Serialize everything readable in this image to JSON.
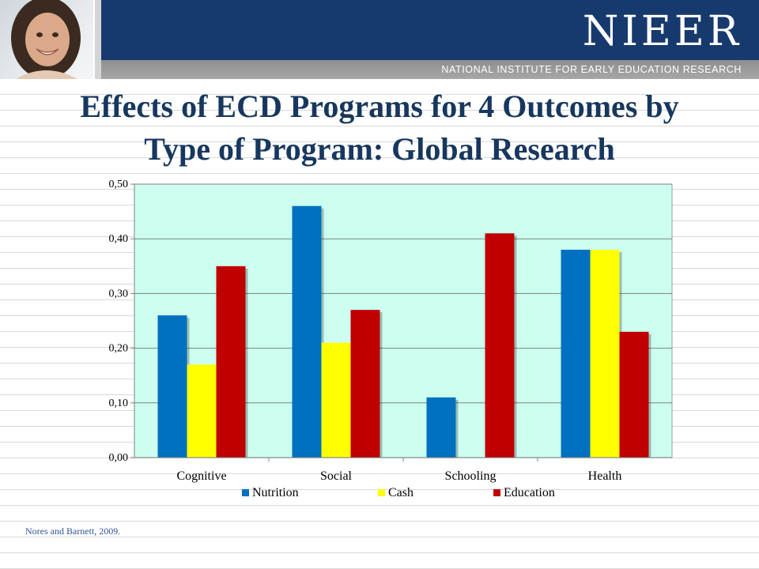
{
  "header": {
    "logo_text": "NIEER",
    "tagline": "NATIONAL INSTITUTE FOR EARLY EDUCATION RESEARCH"
  },
  "title_line1": "Effects of ECD Programs for 4 Outcomes by",
  "title_line2": "Type of Program: Global Research",
  "source": "Nores and Barnett, 2009.",
  "chart_data": {
    "type": "bar",
    "categories": [
      "Cognitive",
      "Social",
      "Schooling",
      "Health"
    ],
    "series": [
      {
        "name": "Nutrition",
        "color": "#0070c0",
        "values": [
          0.26,
          0.46,
          0.11,
          0.38
        ]
      },
      {
        "name": "Cash",
        "color": "#ffff00",
        "values": [
          0.17,
          0.21,
          null,
          0.38
        ]
      },
      {
        "name": "Education",
        "color": "#c00000",
        "values": [
          0.35,
          0.27,
          0.41,
          0.23
        ]
      }
    ],
    "yticks": [
      "0,00",
      "0,10",
      "0,20",
      "0,30",
      "0,40",
      "0,50"
    ],
    "ylim": [
      0,
      0.5
    ],
    "plot_background": "#ccfff0",
    "grid": true,
    "legend_position": "bottom"
  }
}
